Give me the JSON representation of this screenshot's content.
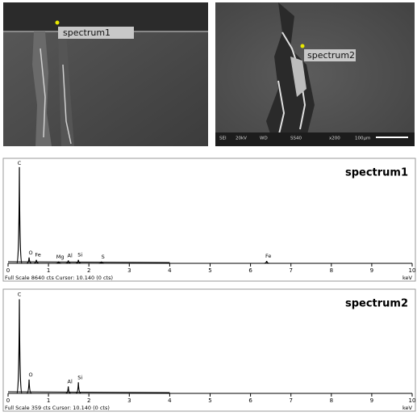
{
  "images": [
    {
      "label": "spectrum1"
    },
    {
      "label": "spectrum2",
      "scale_bar": [
        "SEI",
        "20kV",
        "WD",
        "SS40",
        "x200",
        "100μm"
      ]
    }
  ],
  "chart_data": [
    {
      "type": "spectrum",
      "title": "spectrum1",
      "x_unit": "keV",
      "footer": "Full Scale 8640 cts Cursor: 10.140  (0 cts)",
      "xlim": [
        0,
        10
      ],
      "xticks": [
        0,
        1,
        2,
        3,
        4,
        5,
        6,
        7,
        8,
        9,
        10
      ],
      "ylim": [
        0,
        8640
      ],
      "color": "#000000",
      "peaks": [
        {
          "element": "C",
          "energy": 0.28,
          "counts": 8300
        },
        {
          "element": "O",
          "energy": 0.52,
          "counts": 500
        },
        {
          "element": "Fe",
          "energy": 0.7,
          "counts": 300
        },
        {
          "element": "Mg",
          "energy": 1.25,
          "counts": 150
        },
        {
          "element": "Al",
          "energy": 1.49,
          "counts": 250
        },
        {
          "element": "Si",
          "energy": 1.74,
          "counts": 300
        },
        {
          "element": "S",
          "energy": 2.31,
          "counts": 150
        },
        {
          "element": "Fe",
          "energy": 6.4,
          "counts": 200
        }
      ]
    },
    {
      "type": "spectrum",
      "title": "spectrum2",
      "x_unit": "keV",
      "footer": "Full Scale 359 cts Cursor: 10.140  (0 cts)",
      "xlim": [
        0,
        10
      ],
      "xticks": [
        0,
        1,
        2,
        3,
        4,
        5,
        6,
        7,
        8,
        9,
        10
      ],
      "ylim": [
        0,
        359
      ],
      "color": "#000000",
      "peaks": [
        {
          "element": "C",
          "energy": 0.28,
          "counts": 340
        },
        {
          "element": "O",
          "energy": 0.52,
          "counts": 50
        },
        {
          "element": "Al",
          "energy": 1.49,
          "counts": 25
        },
        {
          "element": "Si",
          "energy": 1.74,
          "counts": 40
        }
      ]
    }
  ]
}
